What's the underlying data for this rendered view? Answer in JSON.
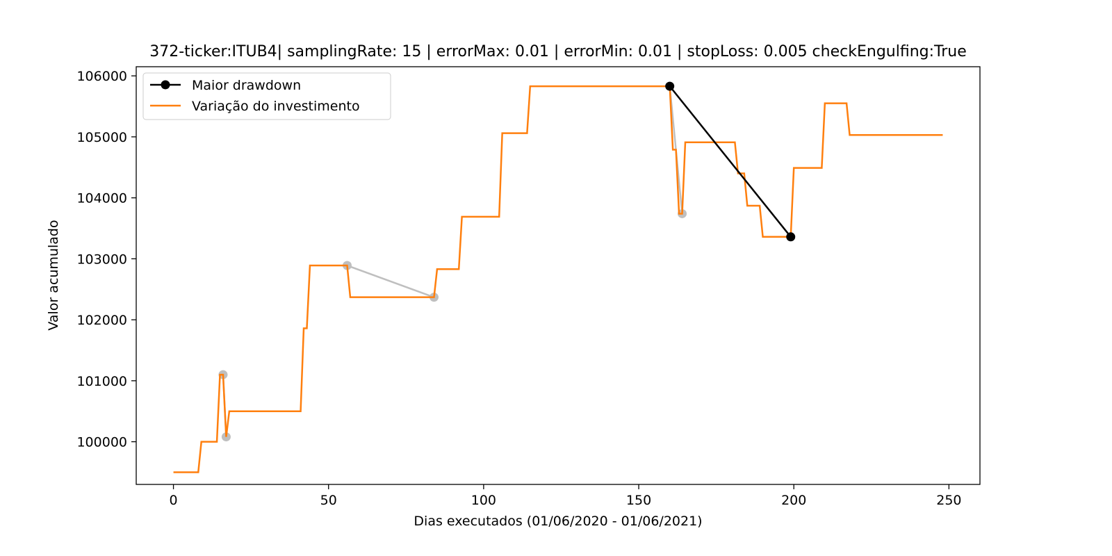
{
  "chart_data": {
    "type": "line",
    "title": "372-ticker:ITUB4| samplingRate: 15 | errorMax: 0.01 | errorMin: 0.01 | stopLoss: 0.005 checkEngulfing:True",
    "xlabel": "Dias executados (01/06/2020 - 01/06/2021)",
    "ylabel": "Valor acumulado",
    "xlim": [
      -12,
      260
    ],
    "ylim": [
      99300,
      106150
    ],
    "xticks": [
      0,
      50,
      100,
      150,
      200,
      250
    ],
    "yticks": [
      100000,
      101000,
      102000,
      103000,
      104000,
      105000,
      106000
    ],
    "legend_position": "upper-left",
    "series": [
      {
        "name": "Variação do investimento",
        "color": "#ff7f0e",
        "x": [
          0,
          8,
          9,
          14,
          15,
          16,
          17,
          18,
          41,
          42,
          43,
          44,
          56,
          57,
          84,
          85,
          92,
          93,
          105,
          106,
          114,
          115,
          160,
          161,
          162,
          163,
          164,
          165,
          181,
          182,
          184,
          185,
          189,
          190,
          199,
          200,
          209,
          210,
          217,
          218,
          248
        ],
        "y": [
          99500,
          99500,
          100000,
          100000,
          101100,
          101100,
          100080,
          100500,
          100500,
          101860,
          101860,
          102890,
          102890,
          102370,
          102370,
          102830,
          102830,
          103690,
          103690,
          105060,
          105060,
          105830,
          105830,
          104790,
          104790,
          103740,
          103740,
          104910,
          104910,
          104400,
          104400,
          103870,
          103870,
          103360,
          103360,
          104490,
          104490,
          105550,
          105550,
          105030,
          105030
        ]
      }
    ],
    "gray_drawdowns": [
      {
        "x": [
          16,
          17
        ],
        "y": [
          101100,
          100080
        ]
      },
      {
        "x": [
          56,
          84
        ],
        "y": [
          102890,
          102370
        ]
      },
      {
        "x": [
          160,
          164
        ],
        "y": [
          105830,
          103740
        ]
      }
    ],
    "max_drawdown": {
      "name": "Maior drawdown",
      "color": "#000000",
      "x": [
        160,
        199
      ],
      "y": [
        105830,
        103360
      ]
    },
    "gray_color": "#bfbfbf"
  }
}
